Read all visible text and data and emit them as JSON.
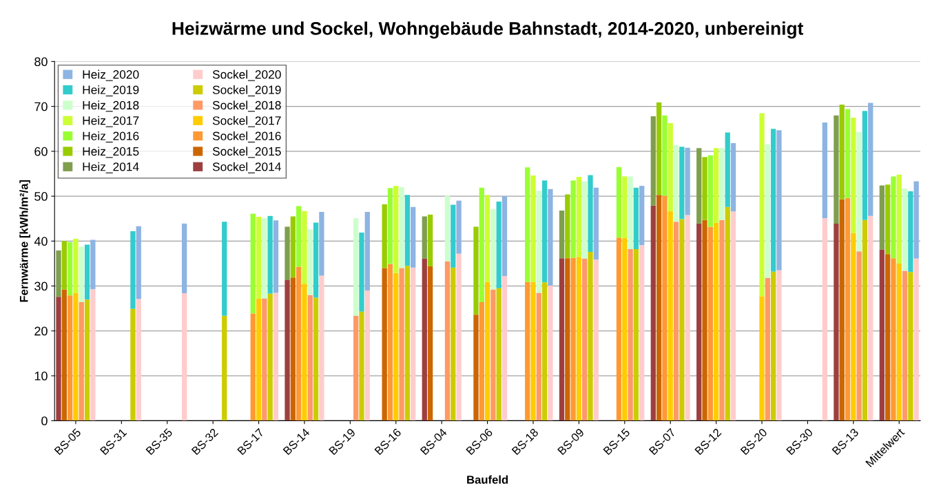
{
  "chart_data": {
    "type": "bar",
    "title": "Heizwärme und Sockel, Wohngebäude Bahnstadt, 2014-2020, unbereinigt",
    "xlabel": "Baufeld",
    "ylabel": "Fernwärme [kWh/m²/a]",
    "categories": [
      null,
      null,
      null,
      "BS-05",
      null,
      null,
      null,
      null,
      null,
      null,
      null,
      "BS-31",
      null,
      null,
      null,
      null,
      null,
      null,
      null,
      "BS-35",
      null,
      null,
      null,
      null,
      null,
      null,
      null,
      "BS-32",
      null,
      null,
      null,
      null,
      null,
      null,
      null,
      "BS-17",
      null,
      null,
      null,
      null,
      null,
      null,
      null,
      "BS-14",
      null,
      null,
      null,
      null,
      null,
      null,
      null,
      "BS-19",
      null,
      null,
      null,
      null,
      null,
      null,
      null,
      "BS-16",
      null,
      null,
      null,
      null,
      null,
      null,
      null,
      "BS-04",
      null,
      null,
      null,
      null,
      null,
      null,
      null,
      "BS-06",
      null,
      null,
      null,
      null,
      null,
      null,
      null,
      "BS-18",
      null,
      null,
      null,
      null,
      null,
      null,
      null,
      "BS-09",
      null,
      null,
      null,
      null,
      null,
      null,
      null,
      "BS-15",
      null,
      null,
      null,
      null,
      null,
      null,
      null,
      "BS-07",
      null,
      null,
      null,
      null,
      null,
      null,
      null,
      "BS-12",
      null,
      null,
      null,
      null,
      null,
      null,
      null,
      "BS-20",
      null,
      null,
      null,
      null,
      null,
      null,
      null,
      "BS-30",
      null,
      null,
      null,
      null,
      null,
      null,
      null,
      "BS-13",
      null,
      null,
      null,
      null,
      null,
      null,
      null,
      "Mittelwert",
      null,
      null,
      null
    ],
    "stacked": true,
    "ylim": [
      0,
      80
    ],
    "yticks": [
      0,
      10,
      20,
      30,
      40,
      50,
      60,
      70,
      80
    ],
    "grid": "y",
    "legend": "top left",
    "series": [
      {
        "name": "Sockel_2014",
        "color": "#9e3f3f",
        "values": [
          27.6,
          null,
          null,
          null,
          null,
          null,
          null,
          null,
          null,
          null,
          null,
          null,
          null,
          null,
          null,
          null,
          null,
          null,
          null,
          null,
          null,
          null,
          null,
          null,
          null,
          null,
          null,
          null,
          null,
          null,
          null,
          null,
          null,
          null,
          null,
          null,
          null,
          null,
          null,
          null,
          31.3,
          null,
          null,
          null,
          null,
          null,
          null,
          null,
          null,
          null,
          null,
          null,
          null,
          null,
          null,
          null,
          null,
          null,
          null,
          null,
          null,
          null,
          null,
          null,
          36.1,
          null,
          null,
          null,
          null,
          null,
          null,
          null,
          null,
          null,
          null,
          null,
          null,
          null,
          null,
          null,
          null,
          null,
          null,
          null,
          null,
          null,
          null,
          null,
          36.2,
          null,
          null,
          null,
          null,
          null,
          null,
          null,
          null,
          null,
          null,
          null,
          null,
          null,
          null,
          null,
          47.9,
          null,
          null,
          null,
          null,
          null,
          null,
          null,
          43.9,
          null,
          null,
          null,
          null,
          null,
          null,
          null,
          null,
          null,
          null,
          null,
          null,
          null,
          null,
          null,
          null,
          null,
          null,
          null,
          null,
          null,
          null,
          null,
          43.9,
          null,
          null,
          null,
          null,
          null,
          null,
          null,
          38.1,
          null,
          null,
          null,
          null,
          null,
          null
        ]
      },
      {
        "name": "Sockel_2015",
        "color": "#cc6600",
        "values": [
          null,
          29.2,
          null,
          null,
          null,
          null,
          null,
          null,
          null,
          null,
          null,
          null,
          null,
          null,
          null,
          null,
          null,
          null,
          null,
          null,
          null,
          null,
          null,
          null,
          null,
          null,
          null,
          null,
          null,
          null,
          null,
          null,
          null,
          null,
          null,
          null,
          null,
          null,
          null,
          null,
          null,
          31.9,
          null,
          null,
          null,
          null,
          null,
          null,
          null,
          null,
          null,
          null,
          null,
          null,
          null,
          null,
          null,
          34.0,
          null,
          null,
          null,
          null,
          null,
          null,
          null,
          34.4,
          null,
          null,
          null,
          null,
          null,
          null,
          null,
          23.6,
          null,
          null,
          null,
          null,
          null,
          null,
          null,
          null,
          null,
          null,
          null,
          null,
          null,
          null,
          null,
          36.2,
          null,
          null,
          null,
          null,
          null,
          null,
          null,
          null,
          null,
          null,
          null,
          null,
          null,
          null,
          null,
          50.3,
          null,
          null,
          null,
          null,
          null,
          null,
          null,
          44.7,
          null,
          null,
          null,
          null,
          null,
          null,
          null,
          null,
          null,
          null,
          null,
          null,
          null,
          null,
          null,
          null,
          null,
          null,
          null,
          null,
          null,
          null,
          null,
          49.3,
          null,
          null,
          null,
          null,
          null,
          null,
          null,
          37.1,
          null,
          null,
          null,
          null,
          null
        ]
      },
      {
        "name": "Sockel_2016",
        "color": "#ff9933",
        "values": [
          null,
          null,
          27.9,
          null,
          null,
          null,
          null,
          null,
          null,
          null,
          null,
          null,
          null,
          null,
          null,
          null,
          null,
          null,
          null,
          null,
          null,
          null,
          null,
          null,
          null,
          null,
          null,
          null,
          null,
          null,
          null,
          null,
          null,
          null,
          23.9,
          null,
          null,
          null,
          null,
          null,
          null,
          null,
          34.3,
          null,
          null,
          null,
          null,
          null,
          null,
          null,
          null,
          null,
          null,
          null,
          null,
          null,
          null,
          null,
          34.9,
          null,
          null,
          null,
          null,
          null,
          null,
          null,
          null,
          null,
          null,
          null,
          null,
          null,
          null,
          null,
          26.4,
          null,
          null,
          null,
          null,
          null,
          null,
          null,
          30.9,
          null,
          null,
          null,
          null,
          null,
          null,
          null,
          36.3,
          null,
          null,
          null,
          null,
          null,
          null,
          null,
          40.8,
          null,
          null,
          null,
          null,
          null,
          null,
          null,
          50.1,
          null,
          null,
          null,
          null,
          null,
          null,
          null,
          43.2,
          null,
          null,
          null,
          null,
          null,
          null,
          null,
          null,
          null,
          null,
          null,
          null,
          null,
          null,
          null,
          null,
          null,
          null,
          null,
          null,
          null,
          null,
          null,
          49.6,
          null,
          null,
          null,
          null,
          null,
          null,
          null,
          36.2,
          null,
          null,
          null,
          null
        ]
      },
      {
        "name": "Sockel_2017",
        "color": "#ffcc00",
        "values": [
          null,
          null,
          null,
          28.5,
          null,
          null,
          null,
          null,
          null,
          null,
          null,
          null,
          null,
          null,
          null,
          null,
          null,
          null,
          null,
          null,
          null,
          null,
          null,
          null,
          null,
          null,
          null,
          null,
          null,
          null,
          null,
          null,
          null,
          null,
          null,
          27.2,
          null,
          null,
          null,
          null,
          null,
          null,
          null,
          30.5,
          null,
          null,
          null,
          null,
          null,
          null,
          null,
          null,
          null,
          null,
          null,
          null,
          null,
          null,
          null,
          32.9,
          null,
          null,
          null,
          null,
          null,
          null,
          null,
          null,
          null,
          null,
          null,
          null,
          null,
          null,
          null,
          30.9,
          null,
          null,
          null,
          null,
          null,
          null,
          null,
          30.9,
          null,
          null,
          null,
          null,
          null,
          null,
          null,
          36.5,
          null,
          null,
          null,
          null,
          null,
          null,
          null,
          40.7,
          null,
          null,
          null,
          null,
          null,
          null,
          null,
          46.7,
          null,
          null,
          null,
          null,
          null,
          null,
          null,
          44.1,
          null,
          null,
          null,
          null,
          null,
          null,
          null,
          27.7,
          null,
          null,
          null,
          null,
          null,
          null,
          null,
          null,
          null,
          null,
          null,
          null,
          null,
          null,
          null,
          41.8,
          null,
          null,
          null,
          null,
          null,
          null,
          null,
          35.0,
          null,
          null,
          null
        ]
      },
      {
        "name": "Sockel_2018",
        "color": "#ff9966",
        "values": [
          null,
          null,
          null,
          null,
          26.4,
          null,
          null,
          null,
          null,
          null,
          null,
          null,
          null,
          null,
          null,
          null,
          null,
          null,
          null,
          null,
          null,
          null,
          null,
          null,
          null,
          null,
          null,
          null,
          null,
          null,
          null,
          null,
          null,
          null,
          null,
          null,
          27.2,
          null,
          null,
          null,
          null,
          null,
          null,
          null,
          28.0,
          null,
          null,
          null,
          null,
          null,
          null,
          null,
          23.4,
          null,
          null,
          null,
          null,
          null,
          null,
          null,
          34.0,
          null,
          null,
          null,
          null,
          null,
          null,
          null,
          35.5,
          null,
          null,
          null,
          null,
          null,
          null,
          null,
          29.2,
          null,
          null,
          null,
          null,
          null,
          null,
          null,
          28.5,
          null,
          null,
          null,
          null,
          null,
          null,
          null,
          36.1,
          null,
          null,
          null,
          null,
          null,
          null,
          null,
          38.2,
          null,
          null,
          null,
          null,
          null,
          null,
          null,
          44.3,
          null,
          null,
          null,
          null,
          null,
          null,
          null,
          44.7,
          null,
          null,
          null,
          null,
          null,
          null,
          null,
          31.8,
          null,
          null,
          null,
          null,
          null,
          null,
          null,
          null,
          null,
          null,
          null,
          null,
          null,
          null,
          null,
          37.7,
          null,
          null,
          null,
          null,
          null,
          null,
          null,
          33.4,
          null,
          null
        ]
      },
      {
        "name": "Sockel_2019",
        "color": "#cccc00",
        "values": [
          null,
          null,
          null,
          null,
          null,
          27.0,
          null,
          null,
          null,
          null,
          null,
          null,
          null,
          24.9,
          null,
          null,
          null,
          null,
          null,
          null,
          null,
          null,
          null,
          null,
          null,
          null,
          null,
          null,
          null,
          23.4,
          null,
          null,
          null,
          null,
          null,
          null,
          null,
          28.3,
          null,
          null,
          null,
          null,
          null,
          null,
          null,
          27.4,
          null,
          null,
          null,
          null,
          null,
          null,
          null,
          24.3,
          null,
          null,
          null,
          null,
          null,
          null,
          null,
          34.5,
          null,
          null,
          null,
          null,
          null,
          null,
          null,
          34.1,
          null,
          null,
          null,
          null,
          null,
          null,
          null,
          29.5,
          null,
          null,
          null,
          null,
          null,
          null,
          null,
          30.8,
          null,
          null,
          null,
          null,
          null,
          null,
          null,
          37.6,
          null,
          null,
          null,
          null,
          null,
          null,
          null,
          38.2,
          null,
          null,
          null,
          null,
          null,
          null,
          null,
          44.9,
          null,
          null,
          null,
          null,
          null,
          null,
          null,
          47.6,
          null,
          null,
          null,
          null,
          null,
          null,
          null,
          33.2,
          null,
          null,
          null,
          null,
          null,
          null,
          null,
          null,
          null,
          null,
          null,
          null,
          null,
          null,
          null,
          44.7,
          null,
          null,
          null,
          null,
          null,
          null,
          null,
          33.1,
          null
        ]
      },
      {
        "name": "Sockel_2020",
        "color": "#ffcccc",
        "values": [
          null,
          null,
          null,
          null,
          null,
          null,
          29.3,
          null,
          null,
          null,
          null,
          null,
          null,
          null,
          27.1,
          null,
          null,
          null,
          null,
          null,
          null,
          null,
          28.4,
          null,
          null,
          null,
          null,
          null,
          null,
          null,
          null,
          null,
          null,
          null,
          null,
          null,
          null,
          null,
          28.5,
          null,
          null,
          null,
          null,
          null,
          null,
          null,
          32.3,
          null,
          null,
          null,
          null,
          null,
          null,
          null,
          29.0,
          null,
          null,
          null,
          null,
          null,
          null,
          null,
          34.1,
          null,
          null,
          null,
          null,
          null,
          null,
          null,
          37.2,
          null,
          null,
          null,
          null,
          null,
          null,
          null,
          32.2,
          null,
          null,
          null,
          null,
          null,
          null,
          null,
          30.1,
          null,
          null,
          null,
          null,
          null,
          null,
          null,
          35.9,
          null,
          null,
          null,
          null,
          null,
          null,
          null,
          39.1,
          null,
          null,
          null,
          null,
          null,
          null,
          null,
          45.8,
          null,
          null,
          null,
          null,
          null,
          null,
          null,
          46.6,
          null,
          null,
          null,
          null,
          null,
          null,
          null,
          33.5,
          null,
          null,
          null,
          null,
          null,
          null,
          null,
          45.1,
          null,
          null,
          null,
          null,
          null,
          null,
          null,
          45.6,
          null,
          null,
          null,
          null,
          null,
          null,
          null,
          36.1
        ]
      },
      {
        "name": "Heiz_2014",
        "color": "#7f9f4f",
        "values": [
          10.3,
          null,
          null,
          null,
          null,
          null,
          null,
          null,
          null,
          null,
          null,
          null,
          null,
          null,
          null,
          null,
          null,
          null,
          null,
          null,
          null,
          null,
          null,
          null,
          null,
          null,
          null,
          null,
          null,
          null,
          null,
          null,
          null,
          null,
          null,
          null,
          null,
          null,
          null,
          null,
          11.9,
          null,
          null,
          null,
          null,
          null,
          null,
          null,
          null,
          null,
          null,
          null,
          null,
          null,
          null,
          null,
          null,
          null,
          null,
          null,
          null,
          null,
          null,
          null,
          9.4,
          null,
          null,
          null,
          null,
          null,
          null,
          null,
          null,
          null,
          null,
          null,
          null,
          null,
          null,
          null,
          null,
          null,
          null,
          null,
          null,
          null,
          null,
          null,
          10.6,
          null,
          null,
          null,
          null,
          null,
          null,
          null,
          null,
          null,
          null,
          null,
          null,
          null,
          null,
          null,
          19.9,
          null,
          null,
          null,
          null,
          null,
          null,
          null,
          16.8,
          null,
          null,
          null,
          null,
          null,
          null,
          null,
          null,
          null,
          null,
          null,
          null,
          null,
          null,
          null,
          null,
          null,
          null,
          null,
          null,
          null,
          null,
          null,
          24.1,
          null,
          null,
          null,
          null,
          null,
          null,
          null,
          14.3,
          null,
          null,
          null,
          null,
          null,
          null
        ]
      },
      {
        "name": "Heiz_2015",
        "color": "#99cc00",
        "values": [
          null,
          10.8,
          null,
          null,
          null,
          null,
          null,
          null,
          null,
          null,
          null,
          null,
          null,
          null,
          null,
          null,
          null,
          null,
          null,
          null,
          null,
          null,
          null,
          null,
          null,
          null,
          null,
          null,
          null,
          null,
          null,
          null,
          null,
          null,
          null,
          null,
          null,
          null,
          null,
          null,
          null,
          13.6,
          null,
          null,
          null,
          null,
          null,
          null,
          null,
          null,
          null,
          null,
          null,
          null,
          null,
          null,
          null,
          14.2,
          null,
          null,
          null,
          null,
          null,
          null,
          null,
          11.5,
          null,
          null,
          null,
          null,
          null,
          null,
          null,
          19.6,
          null,
          null,
          null,
          null,
          null,
          null,
          null,
          null,
          null,
          null,
          null,
          null,
          null,
          null,
          null,
          14.2,
          null,
          null,
          null,
          null,
          null,
          null,
          null,
          null,
          null,
          null,
          null,
          null,
          null,
          null,
          null,
          20.6,
          null,
          null,
          null,
          null,
          null,
          null,
          null,
          14.0,
          null,
          null,
          null,
          null,
          null,
          null,
          null,
          null,
          null,
          null,
          null,
          null,
          null,
          null,
          null,
          null,
          null,
          null,
          null,
          null,
          null,
          null,
          null,
          21.1,
          null,
          null,
          null,
          null,
          null,
          null,
          null,
          15.5,
          null,
          null,
          null,
          null,
          null
        ]
      },
      {
        "name": "Heiz_2016",
        "color": "#99ff33",
        "values": [
          null,
          null,
          11.9,
          null,
          null,
          null,
          null,
          null,
          null,
          null,
          null,
          null,
          null,
          null,
          null,
          null,
          null,
          null,
          null,
          null,
          null,
          null,
          null,
          null,
          null,
          null,
          null,
          null,
          null,
          null,
          null,
          null,
          null,
          null,
          22.2,
          null,
          null,
          null,
          null,
          null,
          null,
          null,
          13.5,
          null,
          null,
          null,
          null,
          null,
          null,
          null,
          null,
          null,
          null,
          null,
          null,
          null,
          null,
          null,
          16.9,
          null,
          null,
          null,
          null,
          null,
          null,
          null,
          null,
          null,
          null,
          null,
          null,
          null,
          null,
          null,
          25.5,
          null,
          null,
          null,
          null,
          null,
          null,
          null,
          25.5,
          null,
          null,
          null,
          null,
          null,
          null,
          null,
          17.2,
          null,
          null,
          null,
          null,
          null,
          null,
          null,
          15.7,
          null,
          null,
          null,
          null,
          null,
          null,
          null,
          17.9,
          null,
          null,
          null,
          null,
          null,
          null,
          null,
          15.9,
          null,
          null,
          null,
          null,
          null,
          null,
          null,
          null,
          null,
          null,
          null,
          null,
          null,
          null,
          null,
          null,
          null,
          null,
          null,
          null,
          null,
          null,
          null,
          19.8,
          null,
          null,
          null,
          null,
          null,
          null,
          null,
          18.2,
          null,
          null,
          null,
          null
        ]
      },
      {
        "name": "Heiz_2017",
        "color": "#ccff33",
        "values": [
          null,
          null,
          null,
          12.0,
          null,
          null,
          null,
          null,
          null,
          null,
          null,
          null,
          null,
          null,
          null,
          null,
          null,
          null,
          null,
          null,
          null,
          null,
          null,
          null,
          null,
          null,
          null,
          null,
          null,
          null,
          null,
          null,
          null,
          null,
          null,
          18.2,
          null,
          null,
          null,
          null,
          null,
          null,
          null,
          16.2,
          null,
          null,
          null,
          null,
          null,
          null,
          null,
          null,
          null,
          null,
          null,
          null,
          null,
          null,
          null,
          19.4,
          null,
          null,
          null,
          null,
          null,
          null,
          null,
          null,
          null,
          null,
          null,
          null,
          null,
          null,
          null,
          19.4,
          null,
          null,
          null,
          null,
          null,
          null,
          null,
          23.7,
          null,
          null,
          null,
          null,
          null,
          null,
          null,
          17.8,
          null,
          null,
          null,
          null,
          null,
          null,
          null,
          13.7,
          null,
          null,
          null,
          null,
          null,
          null,
          null,
          19.6,
          null,
          null,
          null,
          null,
          null,
          null,
          null,
          16.6,
          null,
          null,
          null,
          null,
          null,
          null,
          null,
          40.8,
          null,
          null,
          null,
          null,
          null,
          null,
          null,
          null,
          null,
          null,
          null,
          null,
          null,
          null,
          null,
          25.7,
          null,
          null,
          null,
          null,
          null,
          null,
          null,
          19.8,
          null,
          null,
          null
        ]
      },
      {
        "name": "Heiz_2018",
        "color": "#ccffcc",
        "values": [
          null,
          null,
          null,
          null,
          12.4,
          null,
          null,
          null,
          null,
          null,
          null,
          null,
          null,
          null,
          null,
          null,
          null,
          null,
          null,
          null,
          null,
          null,
          null,
          null,
          null,
          null,
          null,
          null,
          null,
          null,
          null,
          null,
          null,
          null,
          null,
          null,
          17.9,
          null,
          null,
          null,
          null,
          null,
          null,
          null,
          14.6,
          null,
          null,
          null,
          null,
          null,
          null,
          null,
          21.7,
          null,
          null,
          null,
          null,
          null,
          null,
          null,
          18.0,
          null,
          null,
          null,
          null,
          null,
          null,
          null,
          14.6,
          null,
          null,
          null,
          null,
          null,
          null,
          null,
          17.9,
          null,
          null,
          null,
          null,
          null,
          null,
          null,
          22.7,
          null,
          null,
          null,
          null,
          null,
          null,
          null,
          17.2,
          null,
          null,
          null,
          null,
          null,
          null,
          null,
          16.2,
          null,
          null,
          null,
          null,
          null,
          null,
          null,
          17.1,
          null,
          null,
          null,
          null,
          null,
          null,
          null,
          16.0,
          null,
          null,
          null,
          null,
          null,
          null,
          null,
          29.7,
          null,
          null,
          null,
          null,
          null,
          null,
          null,
          null,
          null,
          null,
          null,
          null,
          null,
          null,
          null,
          26.6,
          null,
          null,
          null,
          null,
          null,
          null,
          null,
          18.3,
          null,
          null
        ]
      },
      {
        "name": "Heiz_2019",
        "color": "#33cccc",
        "values": [
          null,
          null,
          null,
          null,
          null,
          12.2,
          null,
          null,
          null,
          null,
          null,
          null,
          null,
          17.3,
          null,
          null,
          null,
          null,
          null,
          null,
          null,
          null,
          null,
          null,
          null,
          null,
          null,
          null,
          null,
          20.9,
          null,
          null,
          null,
          null,
          null,
          null,
          null,
          17.3,
          null,
          null,
          null,
          null,
          null,
          null,
          null,
          16.7,
          null,
          null,
          null,
          null,
          null,
          null,
          null,
          17.6,
          null,
          null,
          null,
          null,
          null,
          null,
          null,
          15.8,
          null,
          null,
          null,
          null,
          null,
          null,
          null,
          14.0,
          null,
          null,
          null,
          null,
          null,
          null,
          null,
          19.3,
          null,
          null,
          null,
          null,
          null,
          null,
          null,
          22.7,
          null,
          null,
          null,
          null,
          null,
          null,
          null,
          17.1,
          null,
          null,
          null,
          null,
          null,
          null,
          null,
          13.7,
          null,
          null,
          null,
          null,
          null,
          null,
          null,
          16.1,
          null,
          null,
          null,
          null,
          null,
          null,
          null,
          16.6,
          null,
          null,
          null,
          null,
          null,
          null,
          null,
          31.8,
          null,
          null,
          null,
          null,
          null,
          null,
          null,
          null,
          null,
          null,
          null,
          null,
          null,
          null,
          null,
          24.3,
          null,
          null,
          null,
          null,
          null,
          null,
          null,
          18.0,
          null
        ]
      },
      {
        "name": "Heiz_2020",
        "color": "#8db4e2",
        "values": [
          null,
          null,
          null,
          null,
          null,
          null,
          11.0,
          null,
          null,
          null,
          null,
          null,
          null,
          null,
          16.2,
          null,
          null,
          null,
          null,
          null,
          null,
          null,
          15.5,
          null,
          null,
          null,
          null,
          null,
          null,
          null,
          null,
          null,
          null,
          null,
          null,
          null,
          null,
          null,
          16.1,
          null,
          null,
          null,
          null,
          null,
          null,
          null,
          14.2,
          null,
          null,
          null,
          null,
          null,
          null,
          null,
          17.5,
          null,
          null,
          null,
          null,
          null,
          null,
          null,
          13.5,
          null,
          null,
          null,
          null,
          null,
          null,
          null,
          11.8,
          null,
          null,
          null,
          null,
          null,
          null,
          null,
          17.8,
          null,
          null,
          null,
          null,
          null,
          null,
          null,
          21.5,
          null,
          null,
          null,
          null,
          null,
          null,
          null,
          16.0,
          null,
          null,
          null,
          null,
          null,
          null,
          null,
          13.2,
          null,
          null,
          null,
          null,
          null,
          null,
          null,
          15.0,
          null,
          null,
          null,
          null,
          null,
          null,
          null,
          15.2,
          null,
          null,
          null,
          null,
          null,
          null,
          null,
          31.2,
          null,
          null,
          null,
          null,
          null,
          null,
          null,
          21.3,
          null,
          null,
          null,
          null,
          null,
          null,
          null,
          25.2,
          null,
          null,
          null,
          null,
          null,
          null,
          null,
          17.2
        ]
      }
    ]
  }
}
